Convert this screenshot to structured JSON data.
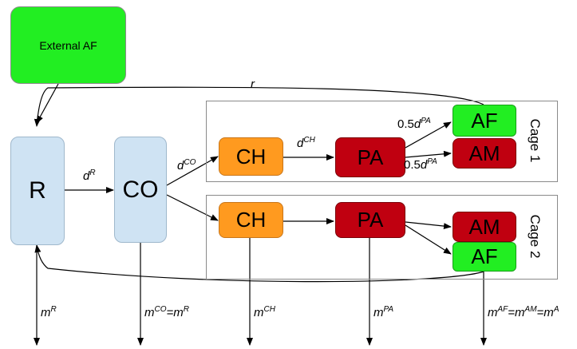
{
  "nodes": {
    "external_af": "External AF",
    "r": "R",
    "co": "CO",
    "cage1": {
      "ch": "CH",
      "pa": "PA",
      "af": "AF",
      "am": "AM",
      "label": "Cage 1"
    },
    "cage2": {
      "ch": "CH",
      "pa": "PA",
      "am": "AM",
      "af": "AF",
      "label": "Cage 2"
    }
  },
  "edge_labels": {
    "feedback_top": {
      "base": "r"
    },
    "r_to_co": {
      "base": "d",
      "sup": "R"
    },
    "co_to_ch": {
      "base": "d",
      "sup": "CO"
    },
    "ch_to_pa": {
      "base": "d",
      "sup": "CH"
    },
    "pa_to_af": {
      "prefix": "0.5",
      "base": "d",
      "sup": "PA"
    },
    "pa_to_am": {
      "prefix": "0.5",
      "base": "d",
      "sup": "PA"
    }
  },
  "mortality": {
    "r": {
      "base": "m",
      "sup": "R"
    },
    "co": {
      "base": "m",
      "sup": "CO",
      "eq": "=m",
      "eq_sup": "R"
    },
    "ch": {
      "base": "m",
      "sup": "CH"
    },
    "pa": {
      "base": "m",
      "sup": "PA"
    },
    "af_am": {
      "base": "m",
      "sup": "AF",
      "eq1": "=m",
      "sup2": "AM",
      "eq2": "=m",
      "sup3": "A"
    }
  },
  "colors": {
    "external": "#22ee22",
    "r_co": "#cfe3f3",
    "ch": "#ff9a1f",
    "pa_am": "#c00010",
    "af": "#22ee22"
  }
}
